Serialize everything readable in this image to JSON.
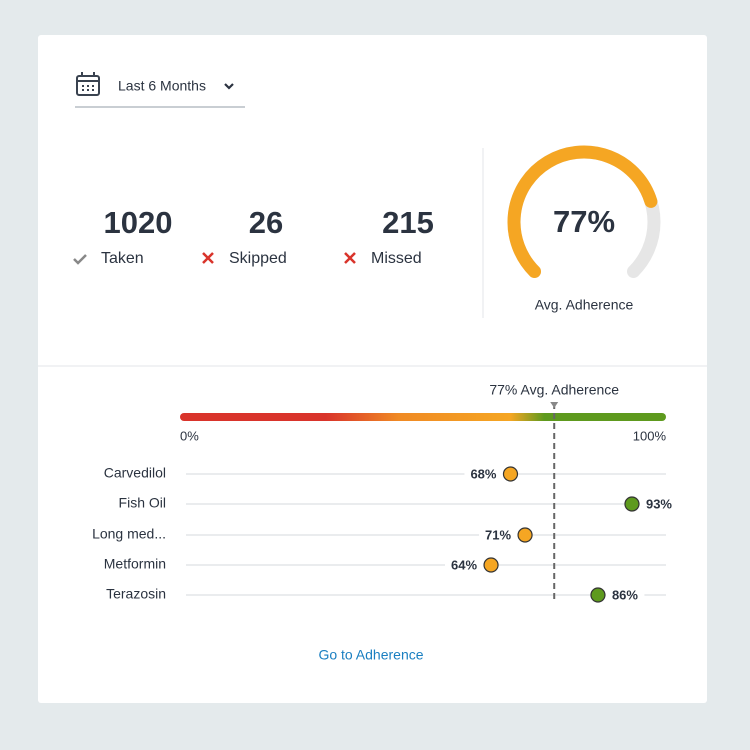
{
  "header": {
    "filter": "Last 6 Months"
  },
  "stats": [
    {
      "value": 1020,
      "label": "Taken"
    },
    {
      "value": 26,
      "label": "Skipped"
    },
    {
      "value": 215,
      "label": "Missed"
    }
  ],
  "gauge": {
    "value": 77,
    "value_label": "77%",
    "label": "Avg. Adherence",
    "color": "#f5a623",
    "track_color": "#e6e6e6"
  },
  "chart_data": {
    "type": "dot",
    "categories": [
      "Carvedilol",
      "Fish Oil",
      "Long med...",
      "Metformin",
      "Terazosin"
    ],
    "values": [
      68,
      93,
      71,
      64,
      86
    ],
    "value_labels": [
      "68%",
      "93%",
      "71%",
      "64%",
      "86%"
    ],
    "colors": [
      "#f5a623",
      "#5e9a1e",
      "#f5a623",
      "#f5a623",
      "#5e9a1e"
    ],
    "xlim": [
      0,
      100
    ],
    "xticks": [
      {
        "value": 0,
        "label": "0%"
      },
      {
        "value": 100,
        "label": "100%"
      }
    ],
    "avg_line": {
      "value": 77,
      "label": "77% Avg. Adherence"
    }
  },
  "link": "Go to Adherence"
}
